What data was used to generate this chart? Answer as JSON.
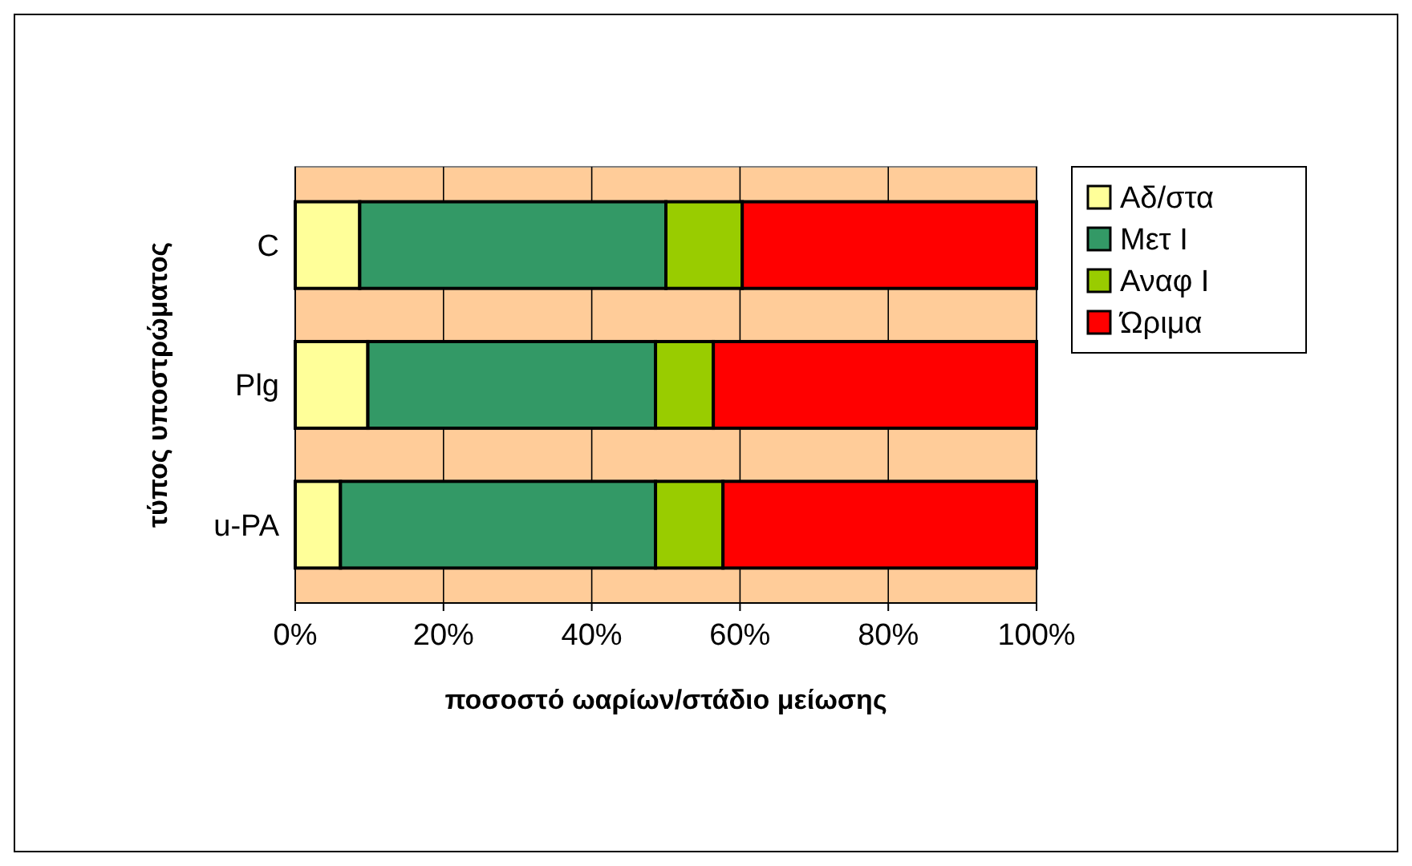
{
  "chart_data": {
    "type": "bar",
    "orientation": "horizontal",
    "stacked": true,
    "xlabel": "ποσοστό ωαρίων/στάδιο μείωσης",
    "ylabel": "τύπος υποστρώματος",
    "categories": [
      "C",
      "Plg",
      "u-PA"
    ],
    "series": [
      {
        "name": "Αδ/στα",
        "color": "#ffff99",
        "values": [
          8.7,
          9.8,
          6.1
        ]
      },
      {
        "name": "Μετ Ι",
        "color": "#339966",
        "values": [
          41.3,
          38.8,
          42.5
        ]
      },
      {
        "name": "Αναφ Ι",
        "color": "#99cc00",
        "values": [
          10.3,
          7.8,
          9.1
        ]
      },
      {
        "name": "Ώριμα",
        "color": "#ff0000",
        "values": [
          39.7,
          43.6,
          42.3
        ]
      }
    ],
    "xlim": [
      0,
      100
    ],
    "xticks": [
      {
        "value": 0,
        "label": "0%"
      },
      {
        "value": 20,
        "label": "20%"
      },
      {
        "value": 40,
        "label": "40%"
      },
      {
        "value": 60,
        "label": "60%"
      },
      {
        "value": 80,
        "label": "80%"
      },
      {
        "value": 100,
        "label": "100%"
      }
    ],
    "grid": "x",
    "legend": "right"
  }
}
